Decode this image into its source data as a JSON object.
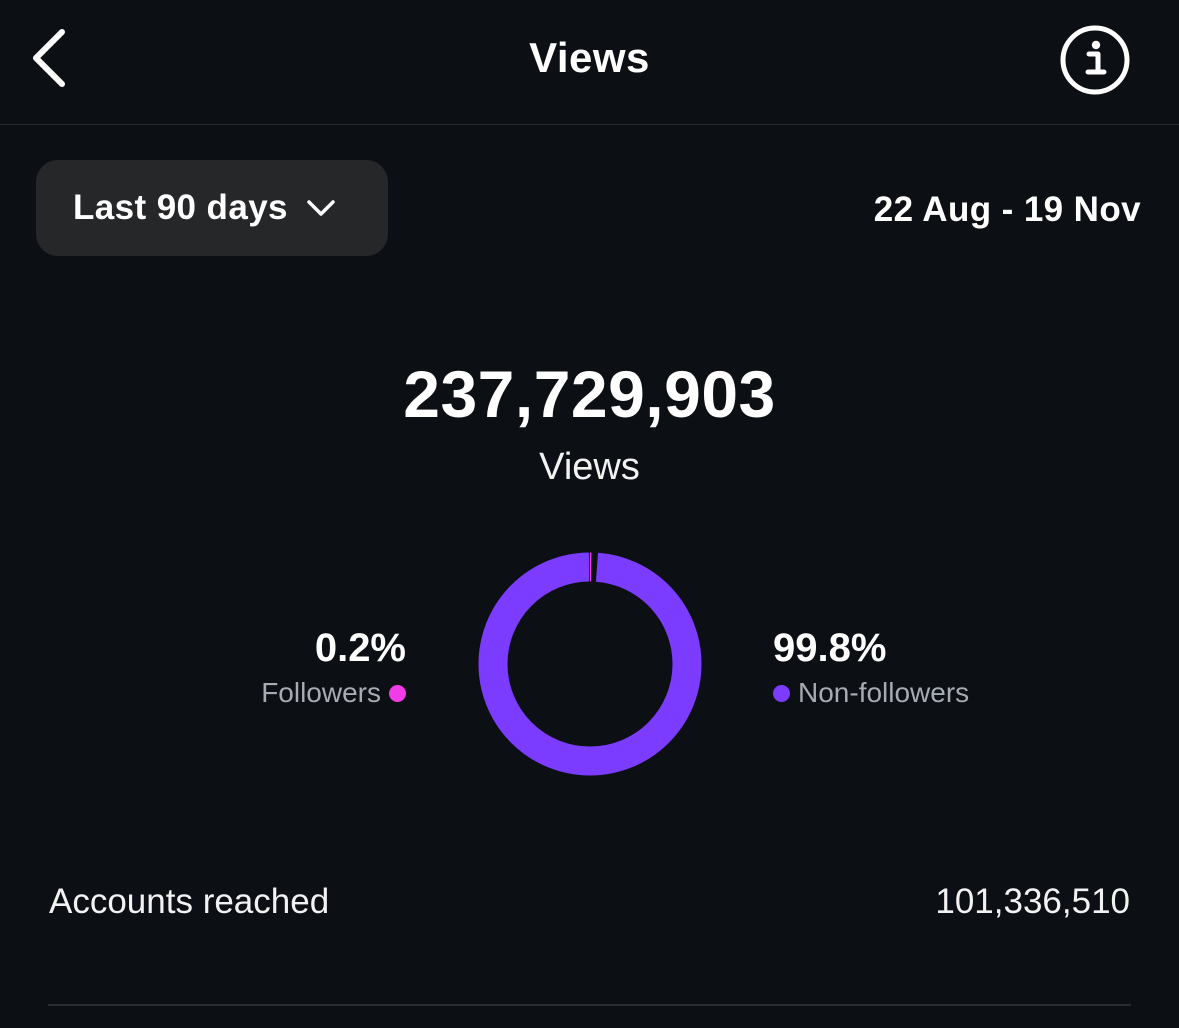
{
  "header": {
    "title": "Views",
    "back_icon": "chevron-left-icon",
    "info_icon": "info-circle-icon"
  },
  "filter": {
    "period_label": "Last 90 days",
    "period_icon": "chevron-down-icon",
    "date_range": "22 Aug - 19 Nov"
  },
  "summary": {
    "total_views": "237,729,903",
    "total_label": "Views"
  },
  "breakdown": {
    "followers": {
      "percent": "0.2%",
      "label": "Followers",
      "value": 0.2,
      "color": "#f23ce8"
    },
    "non_followers": {
      "percent": "99.8%",
      "label": "Non-followers",
      "value": 99.8,
      "color": "#7b3cff"
    }
  },
  "reach": {
    "label": "Accounts reached",
    "value": "101,336,510"
  },
  "colors": {
    "background": "#0c0f14",
    "button_bg": "#262729",
    "accent_purple": "#7b3cff",
    "accent_pink": "#f23ce8"
  }
}
